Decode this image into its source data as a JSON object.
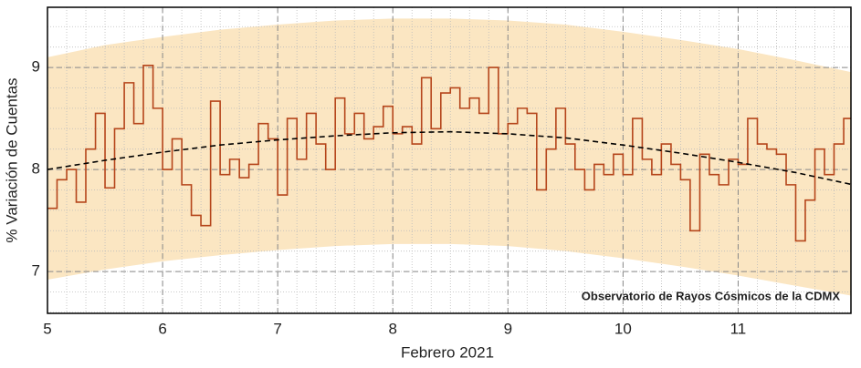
{
  "chart_data": {
    "type": "step",
    "xlabel": "Febrero 2021",
    "ylabel": "% Variación de Cuentas",
    "annotation": "Observatorio de Rayos Cósmicos de la CDMX",
    "xlim": [
      5,
      11.98
    ],
    "xticks": [
      5,
      6,
      7,
      8,
      9,
      10,
      11
    ],
    "ylim": [
      6.59,
      9.59
    ],
    "yticks": [
      7,
      8,
      9
    ],
    "grid": true,
    "series": [
      {
        "color": "#b5451b",
        "x": [
          5,
          5.083,
          5.167,
          5.25,
          5.333,
          5.417,
          5.5,
          5.583,
          5.667,
          5.75,
          5.833,
          5.917,
          6,
          6.083,
          6.167,
          6.25,
          6.333,
          6.417,
          6.5,
          6.583,
          6.667,
          6.75,
          6.833,
          6.917,
          7,
          7.083,
          7.167,
          7.25,
          7.333,
          7.417,
          7.5,
          7.583,
          7.667,
          7.75,
          7.833,
          7.917,
          8,
          8.083,
          8.167,
          8.25,
          8.333,
          8.417,
          8.5,
          8.583,
          8.667,
          8.75,
          8.833,
          8.917,
          9,
          9.083,
          9.167,
          9.25,
          9.333,
          9.417,
          9.5,
          9.583,
          9.667,
          9.75,
          9.833,
          9.917,
          10,
          10.083,
          10.167,
          10.25,
          10.333,
          10.417,
          10.5,
          10.583,
          10.667,
          10.75,
          10.833,
          10.917,
          11,
          11.083,
          11.167,
          11.25,
          11.333,
          11.417,
          11.5,
          11.583,
          11.667,
          11.75,
          11.833,
          11.917
        ],
        "values": [
          7.62,
          7.9,
          8.0,
          7.68,
          8.2,
          8.55,
          7.82,
          8.4,
          8.85,
          8.45,
          9.02,
          8.6,
          8.0,
          8.3,
          7.85,
          7.55,
          7.45,
          8.67,
          7.95,
          8.1,
          7.92,
          8.05,
          8.45,
          8.3,
          7.75,
          8.5,
          8.1,
          8.55,
          8.25,
          8.0,
          8.7,
          8.35,
          8.55,
          8.3,
          8.42,
          8.62,
          8.35,
          8.42,
          8.25,
          8.9,
          8.4,
          8.75,
          8.8,
          8.6,
          8.7,
          8.55,
          9.0,
          8.35,
          8.45,
          8.6,
          8.55,
          7.8,
          8.2,
          8.6,
          8.25,
          8.0,
          7.8,
          8.05,
          7.95,
          8.15,
          7.95,
          8.5,
          8.1,
          7.95,
          8.25,
          8.05,
          7.9,
          7.4,
          8.15,
          7.95,
          7.85,
          8.1,
          8.05,
          8.5,
          8.25,
          8.2,
          8.15,
          7.85,
          7.3,
          7.7,
          8.2,
          7.95,
          8.25,
          8.5
        ]
      }
    ],
    "fit": {
      "color": "#000000",
      "x": [
        5,
        5.5,
        6,
        6.5,
        7,
        7.5,
        8,
        8.5,
        9,
        9.5,
        10,
        10.5,
        11,
        11.5,
        12
      ],
      "values": [
        8.0,
        8.09,
        8.17,
        8.24,
        8.29,
        8.33,
        8.36,
        8.37,
        8.35,
        8.31,
        8.24,
        8.16,
        8.07,
        7.97,
        7.85
      ]
    },
    "band": {
      "color": "#fbe6c2",
      "x": [
        5,
        5.5,
        6,
        6.5,
        7,
        7.5,
        8,
        8.5,
        9,
        9.5,
        10,
        10.5,
        11,
        11.5,
        12
      ],
      "upper": [
        9.1,
        9.22,
        9.3,
        9.37,
        9.42,
        9.46,
        9.48,
        9.48,
        9.46,
        9.42,
        9.35,
        9.27,
        9.18,
        9.07,
        8.95
      ],
      "lower": [
        6.92,
        7.02,
        7.1,
        7.16,
        7.21,
        7.25,
        7.27,
        7.27,
        7.25,
        7.2,
        7.13,
        7.05,
        6.96,
        6.86,
        6.76
      ]
    }
  }
}
